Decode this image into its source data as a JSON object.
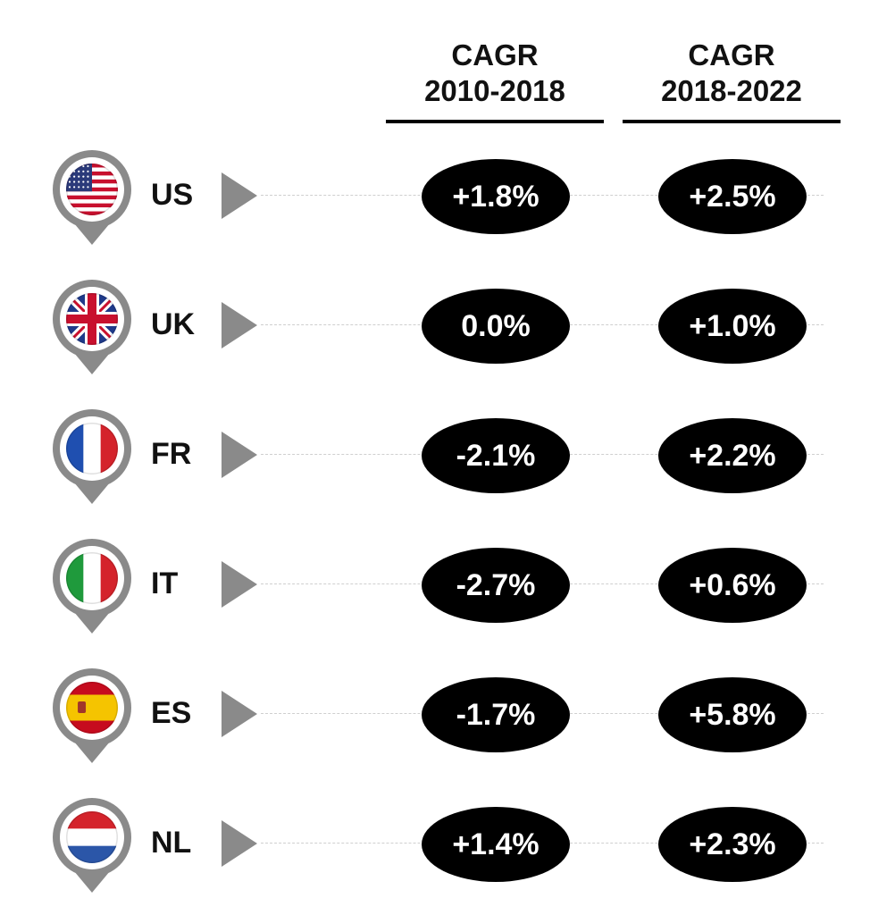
{
  "chart_data": {
    "type": "table",
    "columns": [
      {
        "title_line1": "CAGR",
        "title_line2": "2010-2018"
      },
      {
        "title_line1": "CAGR",
        "title_line2": "2018-2022"
      }
    ],
    "rows": [
      {
        "country": "US",
        "flag": "us-flag-icon",
        "values": [
          "+1.8%",
          "+2.5%"
        ]
      },
      {
        "country": "UK",
        "flag": "uk-flag-icon",
        "values": [
          "0.0%",
          "+1.0%"
        ]
      },
      {
        "country": "FR",
        "flag": "fr-flag-icon",
        "values": [
          "-2.1%",
          "+2.2%"
        ]
      },
      {
        "country": "IT",
        "flag": "it-flag-icon",
        "values": [
          "-2.7%",
          "+0.6%"
        ]
      },
      {
        "country": "ES",
        "flag": "es-flag-icon",
        "values": [
          "-1.7%",
          "+5.8%"
        ]
      },
      {
        "country": "NL",
        "flag": "nl-flag-icon",
        "values": [
          "+1.4%",
          "+2.3%"
        ]
      }
    ]
  },
  "colors": {
    "pill_bg": "#000000",
    "pill_text": "#ffffff",
    "pin": "#8a8a8a",
    "arrow": "#8a8a8a",
    "dash": "#cfcfcf"
  }
}
